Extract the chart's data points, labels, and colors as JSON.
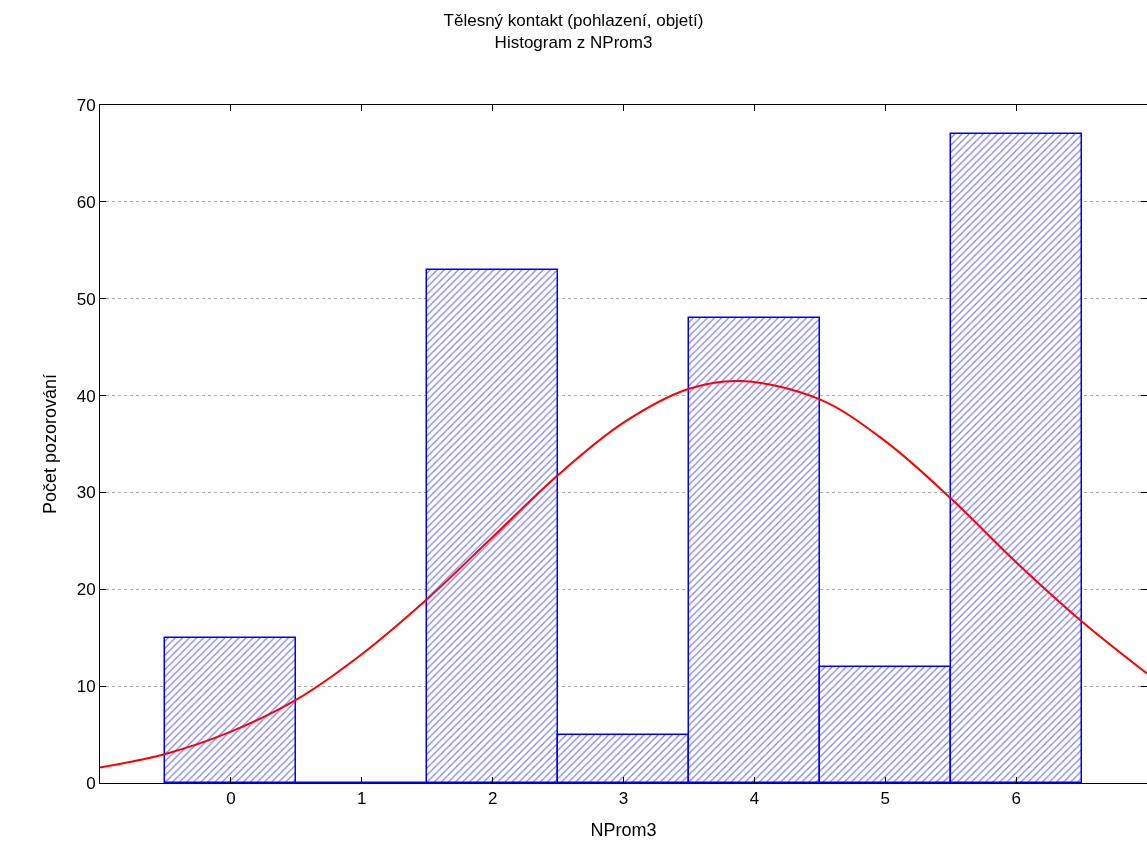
{
  "chart_data": {
    "type": "histogram",
    "title": "Tělesný kontakt (pohlazení, objetí)",
    "subtitle": "Histogram z NProm3",
    "xlabel": "NProm3",
    "ylabel": "Počet pozorování",
    "bins": [
      -0.5,
      0.5,
      1.5,
      2.5,
      3.5,
      4.5,
      5.5,
      6.5
    ],
    "values": [
      15,
      0,
      53,
      5,
      48,
      12,
      67
    ],
    "color": "#0000ff",
    "series": [
      {
        "type": "line",
        "color": "#ff0000",
        "x": [
          -1,
          -0.5,
          0,
          0.5,
          1,
          1.5,
          2,
          2.5,
          3,
          3.5,
          3.9,
          4.5,
          5,
          5.5,
          6,
          6.5,
          7
        ],
        "values": [
          1.6,
          3.0,
          5.3,
          8.6,
          13.3,
          19.0,
          25.4,
          31.8,
          37.2,
          40.7,
          41.5,
          39.6,
          35.3,
          29.4,
          22.8,
          16.7,
          11.3
        ]
      }
    ],
    "xlim": [
      -1,
      7
    ],
    "xticks": [
      0,
      1,
      2,
      3,
      4,
      5,
      6
    ],
    "ylim": [
      0,
      70
    ],
    "yticks": [
      0,
      10,
      20,
      30,
      40,
      50,
      60,
      70
    ],
    "grid": "y"
  }
}
